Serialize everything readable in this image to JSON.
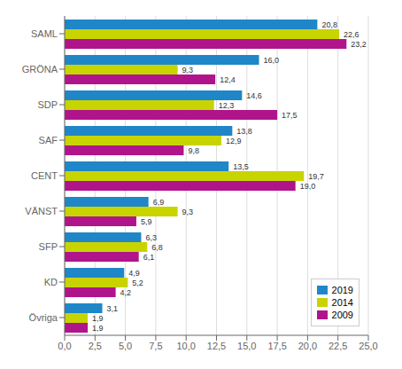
{
  "chart_data": {
    "type": "bar",
    "orientation": "horizontal",
    "categories": [
      "SAML",
      "GRÖNA",
      "SDP",
      "SAF",
      "CENT",
      "VÄNST",
      "SFP",
      "KD",
      "Övriga"
    ],
    "series": [
      {
        "name": "2019",
        "color": "#1F86C8",
        "values": [
          20.8,
          16.0,
          14.6,
          13.8,
          13.5,
          6.9,
          6.3,
          4.9,
          3.1
        ],
        "value_labels": [
          "20,8",
          "16,0",
          "14,6",
          "13,8",
          "13,5",
          "6,9",
          "6,3",
          "4,9",
          "3,1"
        ]
      },
      {
        "name": "2014",
        "color": "#C8D400",
        "values": [
          22.6,
          9.3,
          12.3,
          12.9,
          19.7,
          9.3,
          6.8,
          5.2,
          1.9
        ],
        "value_labels": [
          "22,6",
          "9,3",
          "12,3",
          "12,9",
          "19,7",
          "9,3",
          "6,8",
          "5,2",
          "1,9"
        ]
      },
      {
        "name": "2009",
        "color": "#B0148A",
        "values": [
          23.2,
          12.4,
          17.5,
          9.8,
          19.0,
          5.9,
          6.1,
          4.2,
          1.9
        ],
        "value_labels": [
          "23,2",
          "12,4",
          "17,5",
          "9,8",
          "19,0",
          "5,9",
          "6,1",
          "4,2",
          "1,9"
        ]
      }
    ],
    "xlim": [
      0,
      25.0
    ],
    "xticks": [
      {
        "value": 0.0,
        "label": "0,0"
      },
      {
        "value": 2.5,
        "label": "2,5"
      },
      {
        "value": 5.0,
        "label": "5,0"
      },
      {
        "value": 7.5,
        "label": "7,5"
      },
      {
        "value": 10.0,
        "label": "10,0"
      },
      {
        "value": 12.5,
        "label": "12,5"
      },
      {
        "value": 15.0,
        "label": "15,0"
      },
      {
        "value": 17.5,
        "label": "17,5"
      },
      {
        "value": 20.0,
        "label": "20,0"
      },
      {
        "value": 22.5,
        "label": "22,5"
      },
      {
        "value": 25.0,
        "label": "25,0"
      }
    ],
    "grid": true,
    "legend": "lower right",
    "data_labels": true
  }
}
